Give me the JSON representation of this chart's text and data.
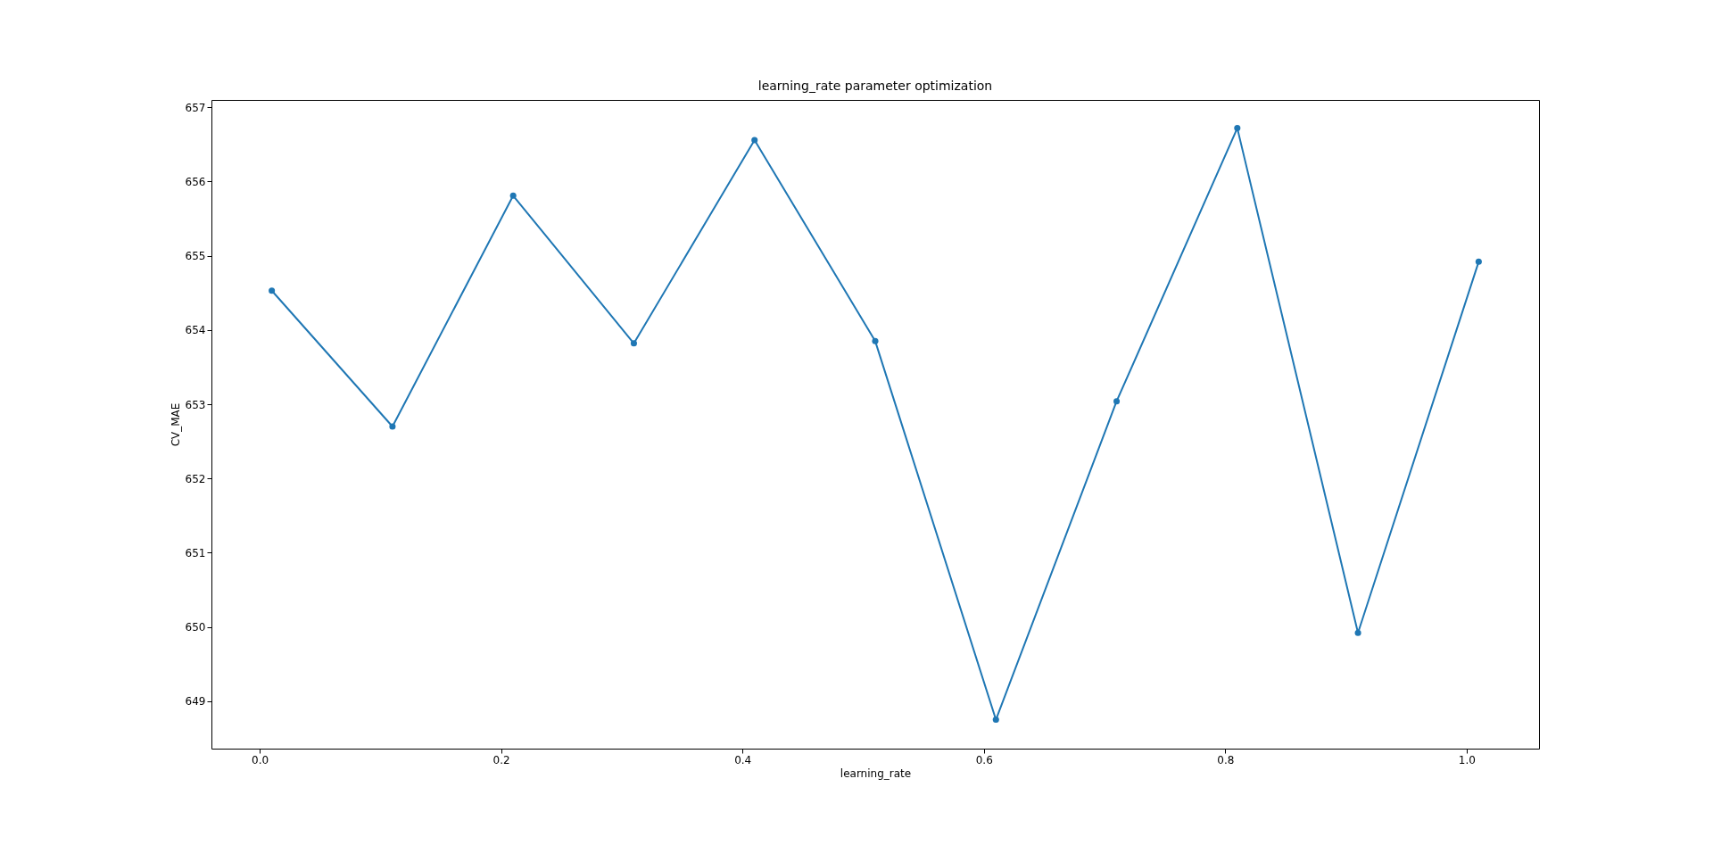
{
  "chart_data": {
    "type": "line",
    "title": "learning_rate parameter optimization",
    "xlabel": "learning_rate",
    "ylabel": "CV_MAE",
    "x": [
      0.01,
      0.11,
      0.21,
      0.31,
      0.41,
      0.51,
      0.61,
      0.71,
      0.81,
      0.91,
      1.01
    ],
    "series": [
      {
        "color": "#1f77b4",
        "values": [
          654.53,
          652.7,
          655.81,
          653.82,
          656.56,
          653.85,
          648.75,
          653.04,
          656.72,
          649.92,
          654.92
        ]
      }
    ],
    "xlim": [
      -0.04,
      1.06
    ],
    "ylim": [
      648.36,
      657.1
    ],
    "xticks": [
      {
        "value": 0,
        "label": "0.0"
      },
      {
        "value": 0.2,
        "label": "0.2"
      },
      {
        "value": 0.4,
        "label": "0.4"
      },
      {
        "value": 0.6,
        "label": "0.6"
      },
      {
        "value": 0.8,
        "label": "0.8"
      },
      {
        "value": 1,
        "label": "1.0"
      }
    ],
    "yticks": [
      649,
      650,
      651,
      652,
      653,
      654,
      655,
      656,
      657
    ],
    "marker": "circle",
    "grid": false,
    "legend": false
  }
}
